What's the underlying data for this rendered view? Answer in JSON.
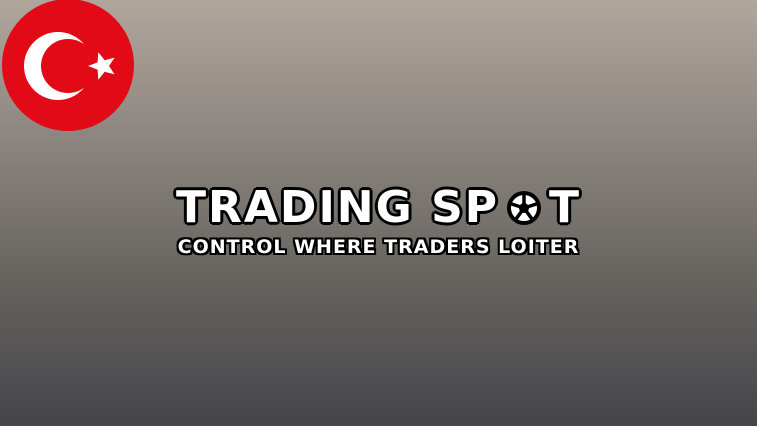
{
  "flag": {
    "icon": "turkey-flag-icon",
    "background": "#e30a17",
    "symbol": "#ffffff"
  },
  "title": {
    "part1": "TRADING SP",
    "part2": "T",
    "o_icon": "wheel-icon"
  },
  "subtitle": "CONTROL WHERE TRADERS LOITER"
}
